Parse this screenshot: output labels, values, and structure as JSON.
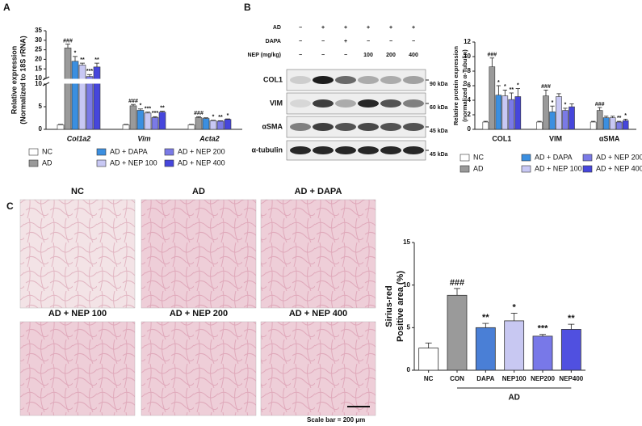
{
  "chart_data": [
    {
      "type": "bar",
      "panel": "A",
      "ylabel": [
        "Relative expression",
        "(Normalized to 18S rRNA)"
      ],
      "categories": [
        "Col1a2",
        "Vim",
        "Acta2"
      ],
      "series": [
        {
          "name": "NC",
          "color": "#ffffff",
          "values": [
            1,
            1,
            1
          ],
          "errors": [
            0.1,
            0.1,
            0.1
          ],
          "sig": [
            null,
            null,
            null
          ]
        },
        {
          "name": "AD",
          "color": "#9a9a9a",
          "values": [
            26,
            5.2,
            2.6
          ],
          "errors": [
            2,
            0.3,
            0.2
          ],
          "sig": [
            "###",
            "###",
            "###"
          ]
        },
        {
          "name": "AD + DAPA",
          "color": "#3b8fe0",
          "values": [
            19,
            4.2,
            2.4
          ],
          "errors": [
            2.5,
            0.3,
            0.15
          ],
          "sig": [
            "*",
            "*",
            null
          ]
        },
        {
          "name": "AD + NEP 100",
          "color": "#c8c8f4",
          "values": [
            17,
            3.6,
            1.9
          ],
          "errors": [
            1,
            0.2,
            0.1
          ],
          "sig": [
            "**",
            "***",
            "*"
          ]
        },
        {
          "name": "AD + NEP 200",
          "color": "#7a7ae6",
          "values": [
            11,
            2.6,
            1.8
          ],
          "errors": [
            1,
            0.2,
            0.1
          ],
          "sig": [
            "***",
            "***",
            "**"
          ]
        },
        {
          "name": "AD + NEP 400",
          "color": "#4646dc",
          "values": [
            16,
            3.8,
            2.2
          ],
          "errors": [
            2,
            0.2,
            0.1
          ],
          "sig": [
            "**",
            "**",
            "*"
          ]
        }
      ],
      "ylim": [
        0,
        35
      ],
      "ybreak": 10,
      "yticks": [
        0,
        5,
        10,
        15,
        20,
        25,
        30,
        35
      ]
    },
    {
      "type": "bar",
      "ylabel": [
        "Relative protein expression",
        "(normalized to α-Tubulin)"
      ],
      "categories": [
        "COL1",
        "VIM",
        "αSMA"
      ],
      "series": [
        {
          "name": "NC",
          "color": "#ffffff",
          "values": [
            1,
            1,
            1
          ],
          "errors": [
            0.1,
            0.1,
            0.1
          ],
          "sig": [
            null,
            null,
            null
          ]
        },
        {
          "name": "AD",
          "color": "#9a9a9a",
          "values": [
            8.6,
            4.6,
            2.6
          ],
          "errors": [
            1.2,
            0.8,
            0.4
          ],
          "sig": [
            "###",
            "###",
            "###"
          ]
        },
        {
          "name": "AD + DAPA",
          "color": "#3b8fe0",
          "values": [
            4.7,
            2.4,
            1.6
          ],
          "errors": [
            1.3,
            0.8,
            0.2
          ],
          "sig": [
            "*",
            "*",
            null
          ]
        },
        {
          "name": "AD + NEP 100",
          "color": "#c8c8f4",
          "values": [
            4.6,
            4.5,
            1.6
          ],
          "errors": [
            0.8,
            0.4,
            0.2
          ],
          "sig": [
            "*",
            null,
            null
          ]
        },
        {
          "name": "AD + NEP 200",
          "color": "#7a7ae6",
          "values": [
            4.1,
            2.6,
            1.0
          ],
          "errors": [
            0.9,
            0.3,
            0.1
          ],
          "sig": [
            "**",
            "*",
            "**"
          ]
        },
        {
          "name": "AD + NEP 400",
          "color": "#4646dc",
          "values": [
            4.5,
            3.1,
            1.2
          ],
          "errors": [
            1.1,
            0.4,
            0.2
          ],
          "sig": [
            "*",
            null,
            "*"
          ]
        }
      ],
      "ylim": [
        0,
        12
      ],
      "yticks": [
        0,
        2,
        4,
        6,
        8,
        10,
        12
      ]
    },
    {
      "type": "bar",
      "ylabel": [
        "Sirius-red",
        "Positive area (%)"
      ],
      "categories": [
        "NC",
        "CON",
        "DAPA",
        "NEP100",
        "NEP200",
        "NEP400"
      ],
      "values": [
        2.6,
        8.8,
        5.0,
        5.8,
        4.0,
        4.8
      ],
      "errors": [
        0.6,
        0.8,
        0.5,
        0.9,
        0.2,
        0.6
      ],
      "sig": [
        null,
        "###",
        "**",
        "*",
        "***",
        "**"
      ],
      "colors": [
        "#ffffff",
        "#9a9a9a",
        "#4a7fd6",
        "#c8c8f2",
        "#7878e8",
        "#5050e0"
      ],
      "group_label": "AD",
      "ylim": [
        0,
        15
      ],
      "yticks": [
        0,
        5,
        10,
        15
      ]
    }
  ],
  "blot": {
    "panel": "B",
    "conditions": [
      {
        "label": "AD",
        "marks": [
          "−",
          "+",
          "+",
          "+",
          "+",
          "+"
        ]
      },
      {
        "label": "DAPA",
        "marks": [
          "−",
          "−",
          "+",
          "−",
          "−",
          "−"
        ]
      },
      {
        "label": "NEP (mg/kg)",
        "marks": [
          "−",
          "−",
          "−",
          "100",
          "200",
          "400"
        ]
      }
    ],
    "bands": [
      {
        "label": "COL1",
        "mw": "90 kDa"
      },
      {
        "label": "VIM",
        "mw": "60 kDa"
      },
      {
        "label": "αSMA",
        "mw": "45 kDa"
      },
      {
        "label": "α-tubulin",
        "mw": "45 kDa"
      }
    ]
  },
  "images": {
    "panel": "C",
    "labels": [
      "NC",
      "AD",
      "AD + DAPA",
      "AD + NEP 100",
      "AD + NEP 200",
      "AD + NEP 400"
    ],
    "scale_bar": "Scale bar = 200 μm"
  }
}
